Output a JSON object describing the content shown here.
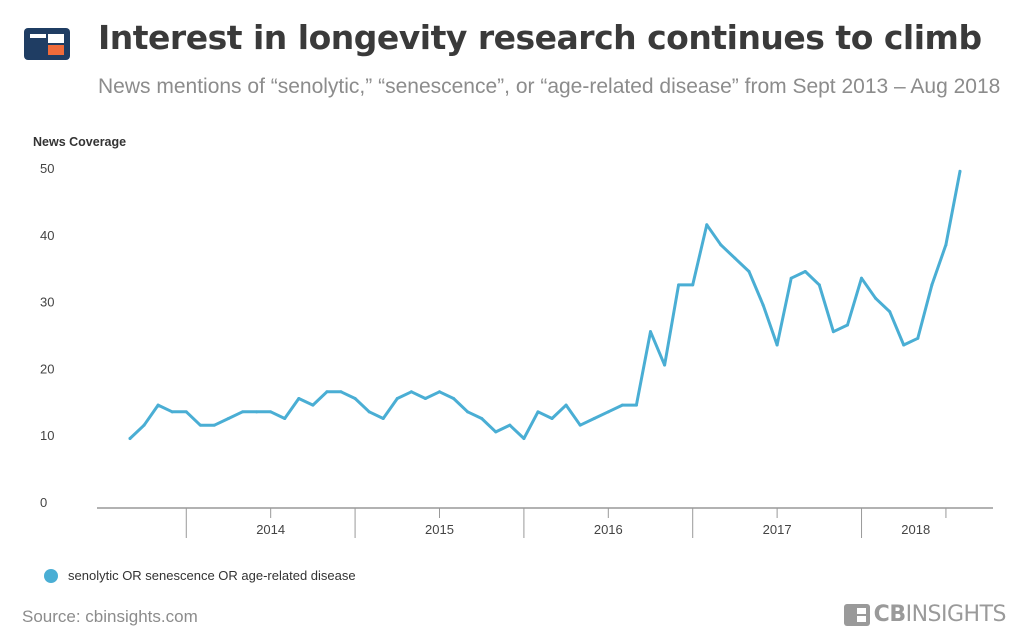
{
  "header": {
    "title": "Interest in longevity research continues to climb",
    "subtitle": "News mentions of “senolytic,” “senescence”, or “age-related disease” from Sept 2013 – Aug 2018",
    "logo_icon": "cbinsights-logo-icon"
  },
  "footer": {
    "source": "Source: cbinsights.com",
    "brand_prefix": "CB",
    "brand_suffix": "INSIGHTS"
  },
  "colors": {
    "line": "#4aaed4",
    "logo_dark": "#1f3d63",
    "logo_orange": "#ef6b3a",
    "axis": "#999999",
    "text": "#333333"
  },
  "chart_data": {
    "type": "line",
    "ylabel": "News Coverage",
    "ylim": [
      0,
      50
    ],
    "yticks": [
      0,
      10,
      20,
      30,
      40,
      50
    ],
    "xlim": [
      "2013-09",
      "2018-08"
    ],
    "year_labels": [
      "2014",
      "2015",
      "2016",
      "2017",
      "2018"
    ],
    "grid": false,
    "legend_position": "bottom-left",
    "series": [
      {
        "name": "senolytic OR senescence OR age-related disease",
        "x": [
          "2013-09",
          "2013-10",
          "2013-11",
          "2013-12",
          "2014-01",
          "2014-02",
          "2014-03",
          "2014-04",
          "2014-05",
          "2014-06",
          "2014-07",
          "2014-08",
          "2014-09",
          "2014-10",
          "2014-11",
          "2014-12",
          "2015-01",
          "2015-02",
          "2015-03",
          "2015-04",
          "2015-05",
          "2015-06",
          "2015-07",
          "2015-08",
          "2015-09",
          "2015-10",
          "2015-11",
          "2015-12",
          "2016-01",
          "2016-02",
          "2016-03",
          "2016-04",
          "2016-05",
          "2016-06",
          "2016-07",
          "2016-08",
          "2016-09",
          "2016-10",
          "2016-11",
          "2016-12",
          "2017-01",
          "2017-02",
          "2017-03",
          "2017-04",
          "2017-05",
          "2017-06",
          "2017-07",
          "2017-08",
          "2017-09",
          "2017-10",
          "2017-11",
          "2017-12",
          "2018-01",
          "2018-02",
          "2018-03",
          "2018-04",
          "2018-05",
          "2018-06",
          "2018-07",
          "2018-08"
        ],
        "values": [
          9.5,
          11.5,
          14.5,
          13.5,
          13.5,
          11.5,
          11.5,
          12.5,
          13.5,
          13.5,
          13.5,
          12.5,
          15.5,
          14.5,
          16.5,
          16.5,
          15.5,
          13.5,
          12.5,
          15.5,
          16.5,
          15.5,
          16.5,
          15.5,
          13.5,
          12.5,
          10.5,
          11.5,
          9.5,
          13.5,
          12.5,
          14.5,
          11.5,
          12.5,
          13.5,
          14.5,
          14.5,
          25.5,
          20.5,
          32.5,
          32.5,
          41.5,
          38.5,
          36.5,
          34.5,
          29.5,
          23.5,
          33.5,
          34.5,
          32.5,
          25.5,
          26.5,
          33.5,
          30.5,
          28.5,
          23.5,
          24.5,
          32.5,
          38.5,
          49.5
        ]
      }
    ]
  }
}
